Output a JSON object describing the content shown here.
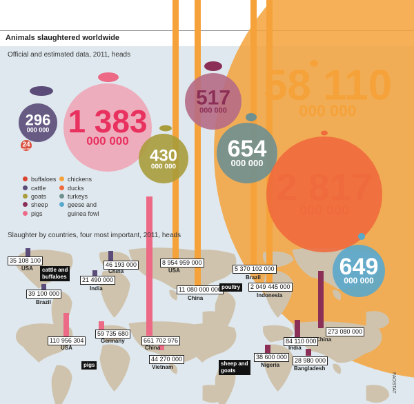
{
  "title": "Animals slaughtered worldwide",
  "subtitle": "Official and estimated data, 2011, heads",
  "subtitle2": "Slaughter by countries, four most important, 2011, heads",
  "source": "FAOSTAT",
  "colors": {
    "buffaloes": "#d9432f",
    "cattle": "#5a4b78",
    "goats": "#a89c3b",
    "sheep": "#8b2f56",
    "pigs": "#ec6a86",
    "chickens": "#f5a23a",
    "ducks": "#ef6a3d",
    "turkeys": "#6f9091",
    "geese": "#59a9cc",
    "panel": "#dfe8ee"
  },
  "legend": [
    {
      "key": "buffaloes",
      "label": "buffaloes"
    },
    {
      "key": "cattle",
      "label": "cattle"
    },
    {
      "key": "goats",
      "label": "goats"
    },
    {
      "key": "sheep",
      "label": "sheep"
    },
    {
      "key": "pigs",
      "label": "pigs"
    },
    {
      "key": "chickens",
      "label": "chickens"
    },
    {
      "key": "ducks",
      "label": "ducks"
    },
    {
      "key": "turkeys",
      "label": "turkeys"
    },
    {
      "key": "geese",
      "label": "geese and"
    },
    {
      "key": "geese2",
      "label": "guinea fowl"
    }
  ],
  "bubbles": [
    {
      "key": "buffaloes",
      "big": "24",
      "small": "000 000"
    },
    {
      "key": "cattle",
      "big": "296",
      "small": "000 000"
    },
    {
      "key": "pigs",
      "big": "1 383",
      "small": "000 000"
    },
    {
      "key": "goats",
      "big": "430",
      "small": "000 000"
    },
    {
      "key": "sheep",
      "big": "517",
      "small": "000 000"
    },
    {
      "key": "turkeys",
      "big": "654",
      "small": "000 000"
    },
    {
      "key": "chickens",
      "big": "58 110",
      "small": "000 000"
    },
    {
      "key": "ducks",
      "big": "2 817",
      "small": "000 000"
    },
    {
      "key": "geese",
      "big": "649",
      "small": "000 000"
    }
  ],
  "groups": {
    "cattle": "cattle and\nbuffaloes",
    "poultry": "poultry",
    "pigs": "pigs",
    "sheep": "sheep and\ngoats"
  },
  "country_values": [
    {
      "group": "cattle",
      "value": "35 108 100",
      "country": "USA"
    },
    {
      "group": "cattle",
      "value": "46 193 000",
      "country": "China"
    },
    {
      "group": "cattle",
      "value": "21 490 000",
      "country": "India"
    },
    {
      "group": "cattle",
      "value": "39 100 000",
      "country": "Brazil"
    },
    {
      "group": "poultry",
      "value": "8 954 959 000",
      "country": "USA"
    },
    {
      "group": "poultry",
      "value": "11 080 000 000",
      "country": "China"
    },
    {
      "group": "poultry",
      "value": "5 370 102 000",
      "country": "Brazil"
    },
    {
      "group": "poultry",
      "value": "2 049 445 000",
      "country": "Indonesia"
    },
    {
      "group": "pigs",
      "value": "110 956 304",
      "country": "USA"
    },
    {
      "group": "pigs",
      "value": "59 735 680",
      "country": "Germany"
    },
    {
      "group": "pigs",
      "value": "661 702 976",
      "country": "China"
    },
    {
      "group": "pigs",
      "value": "44 270 000",
      "country": "Vietnam"
    },
    {
      "group": "sheep",
      "value": "273 080 000",
      "country": "China"
    },
    {
      "group": "sheep",
      "value": "84 110 000",
      "country": "India"
    },
    {
      "group": "sheep",
      "value": "38 600 000",
      "country": "Nigeria"
    },
    {
      "group": "sheep",
      "value": "28 980 000",
      "country": "Bangladesh"
    }
  ],
  "chart_data": {
    "type": "bubble",
    "title": "Animals slaughtered worldwide",
    "subtitle": "Official and estimated data, 2011, heads",
    "series": [
      {
        "name": "buffaloes",
        "value": 24000000
      },
      {
        "name": "cattle",
        "value": 296000000
      },
      {
        "name": "goats",
        "value": 430000000
      },
      {
        "name": "sheep",
        "value": 517000000
      },
      {
        "name": "pigs",
        "value": 1383000000
      },
      {
        "name": "chickens",
        "value": 58110000000
      },
      {
        "name": "ducks",
        "value": 2817000000
      },
      {
        "name": "turkeys",
        "value": 654000000
      },
      {
        "name": "geese and guinea fowl",
        "value": 649000000
      }
    ],
    "by_country": {
      "title": "Slaughter by countries, four most important, 2011, heads",
      "cattle and buffaloes": {
        "USA": 35108100,
        "China": 46193000,
        "India": 21490000,
        "Brazil": 39100000
      },
      "poultry": {
        "USA": 8954959000,
        "China": 11080000000,
        "Brazil": 5370102000,
        "Indonesia": 2049445000
      },
      "pigs": {
        "USA": 110956304,
        "Germany": 59735680,
        "China": 661702976,
        "Vietnam": 44270000
      },
      "sheep and goats": {
        "China": 273080000,
        "India": 84110000,
        "Nigeria": 38600000,
        "Bangladesh": 28980000
      }
    }
  }
}
